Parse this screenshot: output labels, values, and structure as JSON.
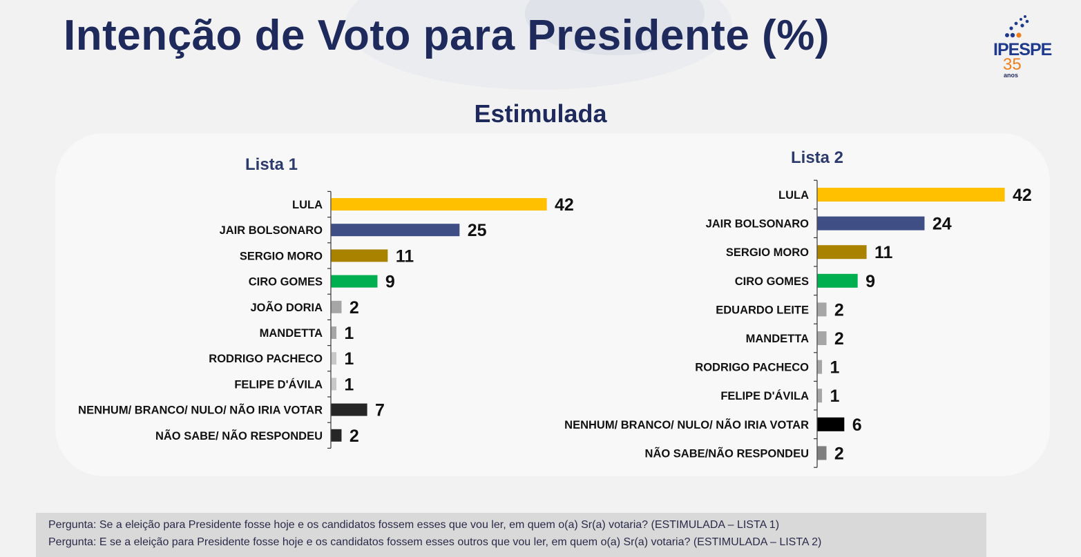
{
  "title": "Intenção de Voto para Presidente (%)",
  "subtitle": "Estimulada",
  "logo": {
    "name": "IPESPE",
    "number": "35",
    "caption": "anos"
  },
  "colors": {
    "title": "#1f2a5c",
    "lula": "#ffc000",
    "bolsonaro": "#3f4f86",
    "moro": "#a98200",
    "ciro": "#00b050",
    "gray": "#a6a6a6",
    "dark": "#262626"
  },
  "chart_data": [
    {
      "type": "bar",
      "orientation": "horizontal",
      "title": "Lista 1",
      "categories": [
        "LULA",
        "JAIR BOLSONARO",
        "SERGIO MORO",
        "CIRO GOMES",
        "JOÃO DORIA",
        "MANDETTA",
        "RODRIGO PACHECO",
        "FELIPE D'ÁVILA",
        "NENHUM/ BRANCO/ NULO/ NÃO IRIA VOTAR",
        "NÃO SABE/ NÃO RESPONDEU"
      ],
      "values": [
        42,
        25,
        11,
        9,
        2,
        1,
        1,
        1,
        7,
        2
      ],
      "colors": [
        "#ffc000",
        "#3f4f86",
        "#a98200",
        "#00b050",
        "#a6a6a6",
        "#a6a6a6",
        "#c8c8c8",
        "#c8c8c8",
        "#262626",
        "#262626"
      ],
      "xlim": [
        0,
        42
      ]
    },
    {
      "type": "bar",
      "orientation": "horizontal",
      "title": "Lista 2",
      "categories": [
        "LULA",
        "JAIR BOLSONARO",
        "SERGIO MORO",
        "CIRO GOMES",
        "EDUARDO LEITE",
        "MANDETTA",
        "RODRIGO PACHECO",
        "FELIPE D'ÁVILA",
        "NENHUM/ BRANCO/ NULO/ NÃO IRIA VOTAR",
        "NÃO SABE/NÃO RESPONDEU"
      ],
      "values": [
        42,
        24,
        11,
        9,
        2,
        2,
        1,
        1,
        6,
        2
      ],
      "colors": [
        "#ffc000",
        "#3f4f86",
        "#a98200",
        "#00b050",
        "#a6a6a6",
        "#a6a6a6",
        "#a6a6a6",
        "#a6a6a6",
        "#000000",
        "#7f7f7f"
      ],
      "xlim": [
        0,
        42
      ]
    }
  ],
  "footer": {
    "line1": "Pergunta:  Se a eleição para Presidente fosse hoje e os candidatos fossem esses que vou ler, em quem o(a) Sr(a) votaria? (ESTIMULADA – LISTA 1)",
    "line2": "Pergunta:  E se a eleição para Presidente fosse hoje e os candidatos fossem esses outros que vou ler, em quem o(a) Sr(a) votaria?  (ESTIMULADA – LISTA 2)"
  }
}
